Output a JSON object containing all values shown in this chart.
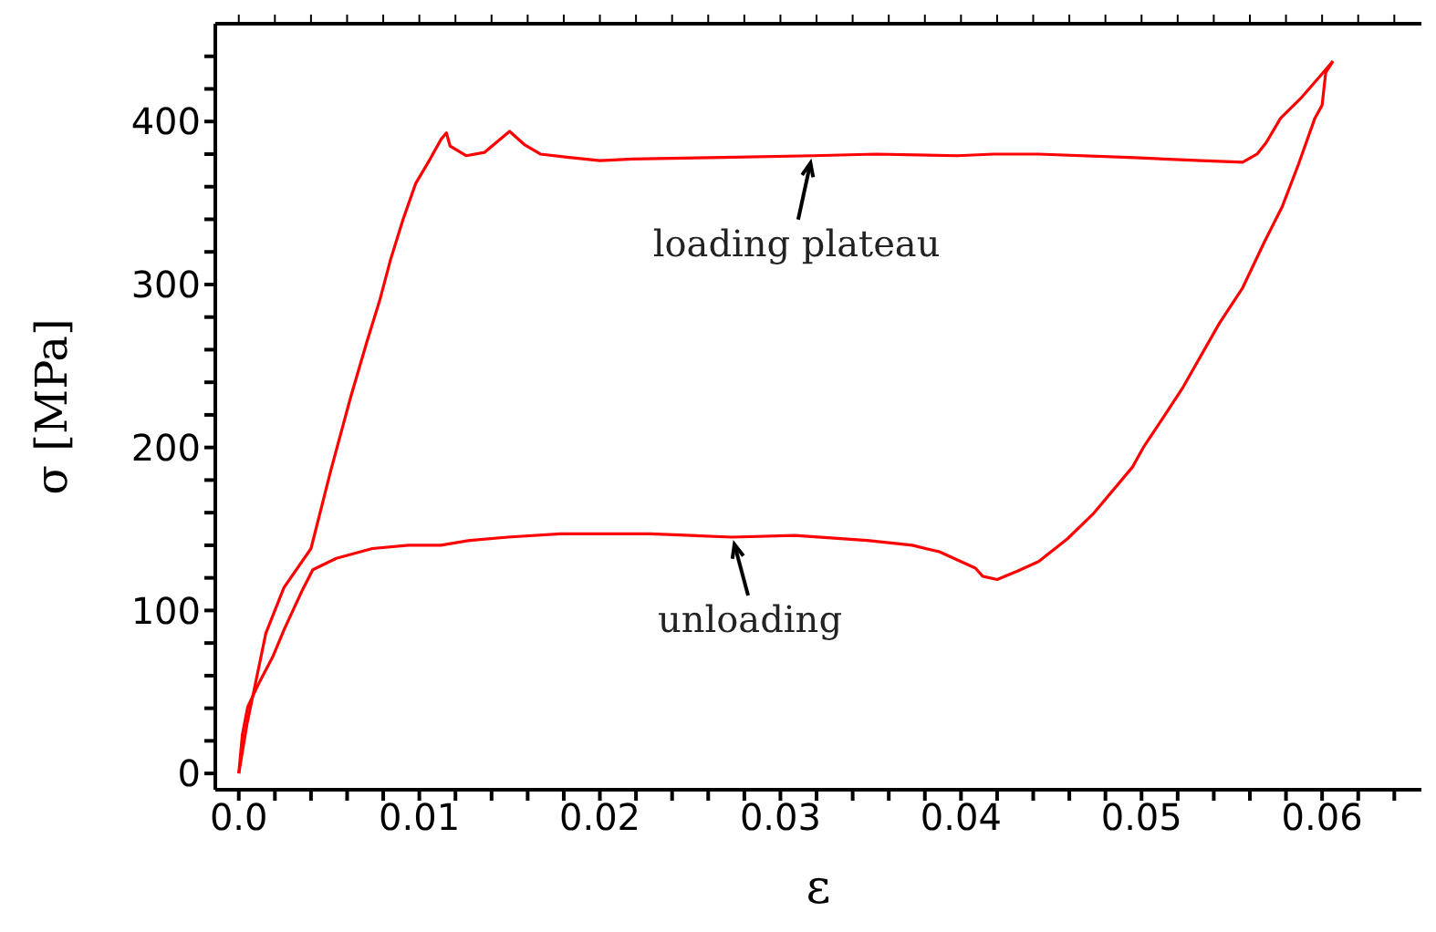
{
  "chart_data": {
    "type": "line",
    "xlabel": "ε",
    "ylabel": "σ [MPa]",
    "xlim": [
      -0.0013,
      0.0655
    ],
    "ylim": [
      -10,
      460
    ],
    "xticks": [
      {
        "value": 0,
        "label": "0.0"
      },
      {
        "value": 0.002,
        "label": null
      },
      {
        "value": 0.004,
        "label": null
      },
      {
        "value": 0.006,
        "label": null
      },
      {
        "value": 0.008,
        "label": null
      },
      0.01,
      {
        "value": 0.012,
        "label": null
      },
      {
        "value": 0.014,
        "label": null
      },
      {
        "value": 0.016,
        "label": null
      },
      {
        "value": 0.018,
        "label": null
      },
      0.02,
      {
        "value": 0.022,
        "label": null
      },
      {
        "value": 0.024,
        "label": null
      },
      {
        "value": 0.026,
        "label": null
      },
      {
        "value": 0.028,
        "label": null
      },
      0.03,
      {
        "value": 0.032,
        "label": null
      },
      {
        "value": 0.034,
        "label": null
      },
      {
        "value": 0.036,
        "label": null
      },
      {
        "value": 0.038,
        "label": null
      },
      0.04,
      {
        "value": 0.042,
        "label": null
      },
      {
        "value": 0.044,
        "label": null
      },
      {
        "value": 0.046,
        "label": null
      },
      {
        "value": 0.048,
        "label": null
      },
      0.05,
      {
        "value": 0.052,
        "label": null
      },
      {
        "value": 0.054,
        "label": null
      },
      {
        "value": 0.056,
        "label": null
      },
      {
        "value": 0.058,
        "label": null
      },
      0.06,
      {
        "value": 0.062,
        "label": null
      },
      {
        "value": 0.064,
        "label": null
      }
    ],
    "yticks": [
      0,
      {
        "value": 20,
        "label": null
      },
      {
        "value": 40,
        "label": null
      },
      {
        "value": 60,
        "label": null
      },
      {
        "value": 80,
        "label": null
      },
      100,
      {
        "value": 120,
        "label": null
      },
      {
        "value": 140,
        "label": null
      },
      {
        "value": 160,
        "label": null
      },
      {
        "value": 180,
        "label": null
      },
      200,
      {
        "value": 220,
        "label": null
      },
      {
        "value": 240,
        "label": null
      },
      {
        "value": 260,
        "label": null
      },
      {
        "value": 280,
        "label": null
      },
      300,
      {
        "value": 320,
        "label": null
      },
      {
        "value": 340,
        "label": null
      },
      {
        "value": 360,
        "label": null
      },
      {
        "value": 380,
        "label": null
      },
      400,
      {
        "value": 420,
        "label": null
      },
      {
        "value": 440,
        "label": null
      }
    ],
    "legend": false,
    "marker": "none",
    "line_style": "solid",
    "annotations": [
      {
        "text": "loading plateau",
        "x": 0.0318,
        "y": 379
      },
      {
        "text": "unloading",
        "x": 0.0273,
        "y": 145
      }
    ],
    "series": [
      {
        "color": "#ff0000",
        "x": [
          0,
          0.00045,
          0.0015,
          0.0025,
          0.004,
          0.0051,
          0.0062,
          0.0071,
          0.0078,
          0.0084,
          0.0091,
          0.0098,
          0.0106,
          0.0112,
          0.0115,
          0.0117,
          0.0126,
          0.0136,
          0.015,
          0.0158,
          0.0167,
          0.0183,
          0.02,
          0.0218,
          0.0268,
          0.0318,
          0.0353,
          0.0398,
          0.0418,
          0.0443,
          0.0493,
          0.0533,
          0.0556,
          0.0564,
          0.0569,
          0.0577,
          0.0588,
          0.0599,
          0.0606
        ],
        "values": [
          0,
          30,
          86,
          114,
          138,
          186,
          231,
          265,
          290,
          315,
          340,
          362,
          377,
          389,
          393,
          385,
          379,
          381,
          394,
          386,
          380,
          378,
          376,
          377,
          378,
          379,
          380,
          379,
          380,
          380,
          378,
          376,
          375,
          380,
          387,
          402,
          414,
          428,
          437
        ]
      },
      {
        "color": "#ff0000",
        "x": [
          0.0606,
          0.0602,
          0.06,
          0.0596,
          0.0587,
          0.0578,
          0.0568,
          0.0556,
          0.0543,
          0.0523,
          0.0513,
          0.0501,
          0.0495,
          0.0473,
          0.0459,
          0.0443,
          0.0431,
          0.042,
          0.0412,
          0.0408,
          0.0388,
          0.0373,
          0.0348,
          0.0308,
          0.0273,
          0.0228,
          0.0178,
          0.0149,
          0.0128,
          0.0112,
          0.0094,
          0.0074,
          0.0054,
          0.0041,
          0.0035,
          0.003,
          0.0025,
          0.0019,
          0.0011,
          0.0005,
          0.0002,
          0
        ],
        "values": [
          437,
          430,
          410,
          402,
          374,
          348,
          326,
          298,
          276,
          237,
          220,
          200,
          188,
          159,
          144,
          130,
          124,
          119,
          121,
          126,
          136,
          140,
          143,
          146,
          145,
          147,
          147,
          145,
          143,
          140,
          140,
          138,
          132,
          125,
          112,
          100,
          88,
          72,
          55,
          41,
          24,
          0
        ]
      }
    ]
  }
}
